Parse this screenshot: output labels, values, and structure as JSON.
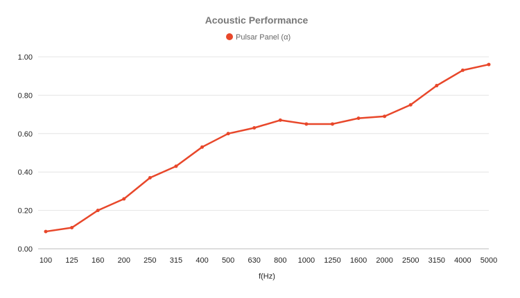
{
  "chart_data": {
    "type": "line",
    "title": "Acoustic Performance",
    "xlabel": "f(Hz)",
    "ylabel": "",
    "categories": [
      "100",
      "125",
      "160",
      "200",
      "250",
      "315",
      "400",
      "500",
      "630",
      "800",
      "1000",
      "1250",
      "1600",
      "2000",
      "2500",
      "3150",
      "4000",
      "5000"
    ],
    "series": [
      {
        "name": "Pulsar Panel (α)",
        "color": "#e8472a",
        "values": [
          0.09,
          0.11,
          0.2,
          0.26,
          0.37,
          0.43,
          0.53,
          0.6,
          0.63,
          0.67,
          0.65,
          0.65,
          0.68,
          0.69,
          0.75,
          0.85,
          0.93,
          0.96
        ]
      }
    ],
    "ylim": [
      0,
      1
    ],
    "yticks": [
      "0.00",
      "0.20",
      "0.40",
      "0.60",
      "0.80",
      "1.00"
    ],
    "grid": true,
    "legend": "top-center"
  }
}
